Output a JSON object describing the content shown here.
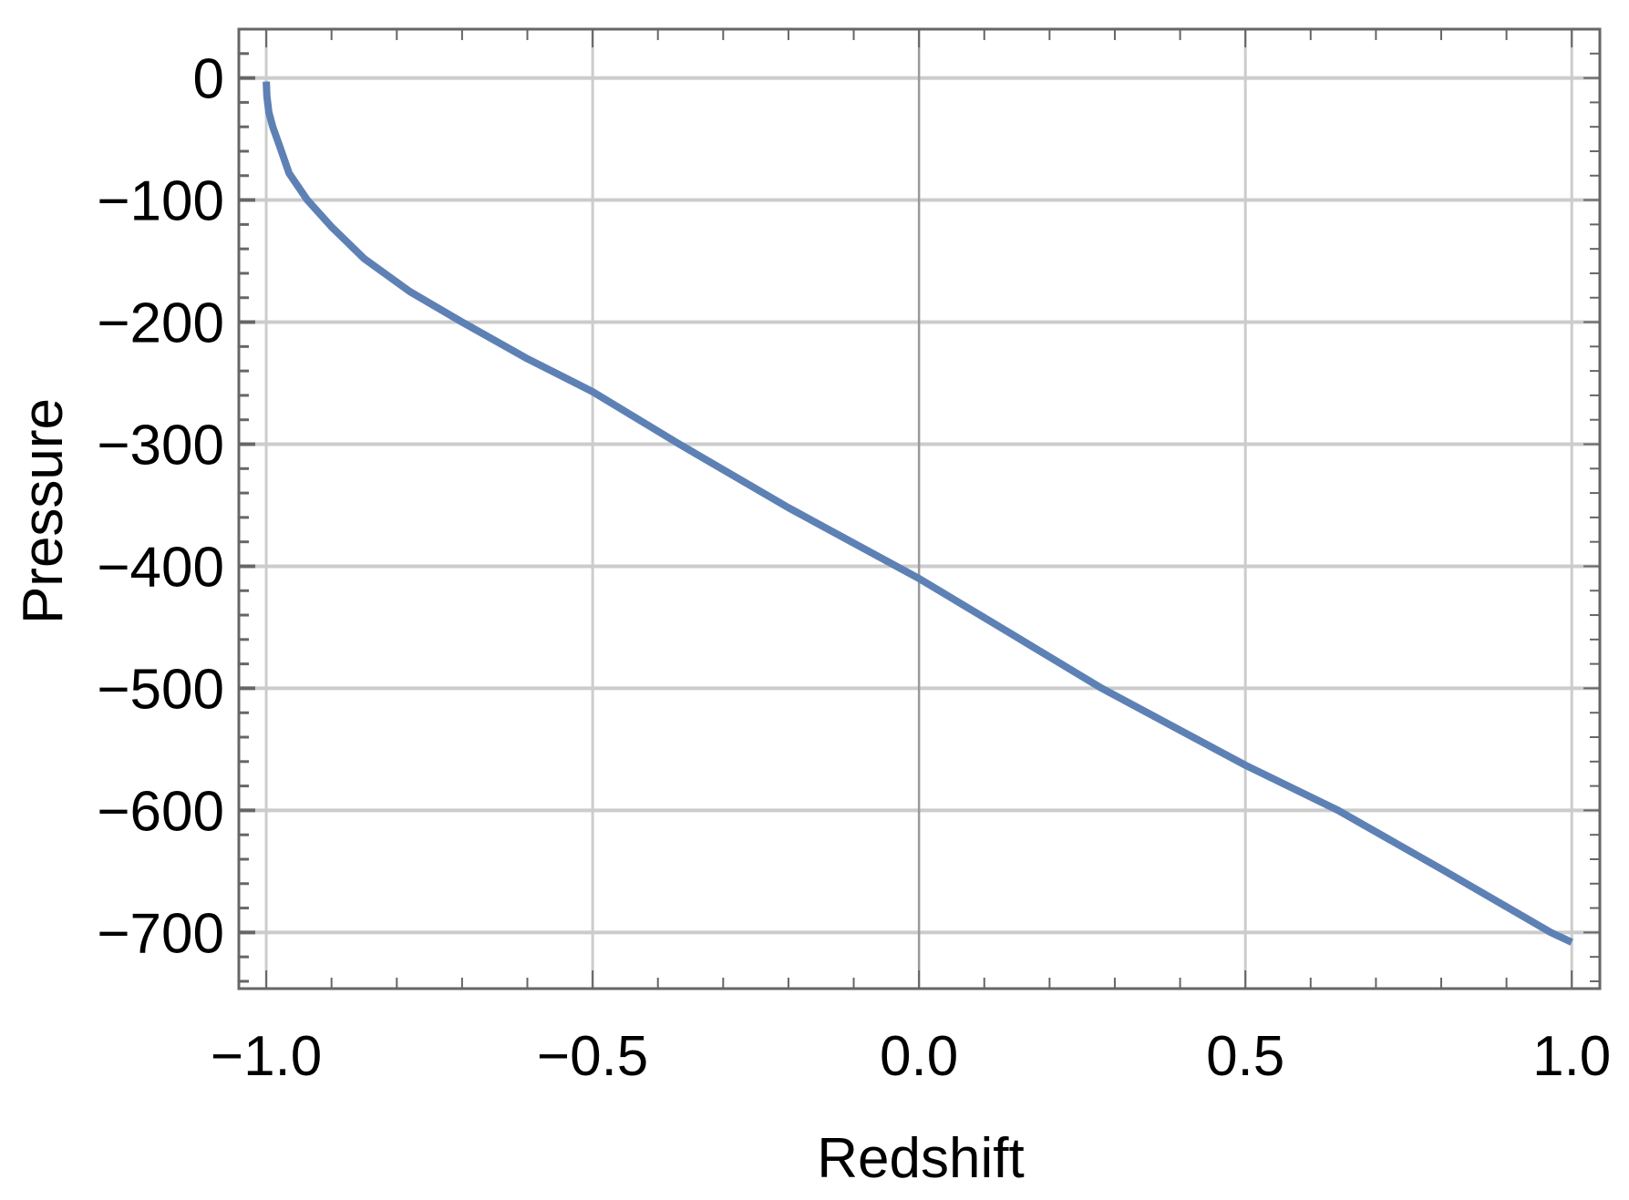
{
  "chart_data": {
    "type": "line",
    "title": "",
    "xlabel": "Redshift",
    "ylabel": "Pressure",
    "xlim": [
      -1.042,
      1.043
    ],
    "ylim": [
      -746,
      40
    ],
    "grid": true,
    "x_ticks": [
      -1.0,
      -0.5,
      0.0,
      0.5,
      1.0
    ],
    "x_tick_labels": [
      "−1.0",
      "−0.5",
      "0.0",
      "0.5",
      "1.0"
    ],
    "y_ticks": [
      0,
      -100,
      -200,
      -300,
      -400,
      -500,
      -600,
      -700
    ],
    "y_tick_labels": [
      "0",
      "−100",
      "−200",
      "−300",
      "−400",
      "−500",
      "−600",
      "−700"
    ],
    "line_color": "#5e81b5",
    "series": [
      {
        "x": [
          -1.0,
          -0.999,
          -0.996,
          -0.99,
          -0.98,
          -0.965,
          -0.937,
          -0.9,
          -0.85,
          -0.78,
          -0.7,
          -0.6,
          -0.5,
          -0.367,
          -0.2,
          0.0,
          0.14,
          0.28,
          0.5,
          0.642,
          0.8,
          0.968,
          1.0
        ],
        "y": [
          -3,
          -15,
          -28,
          -40,
          -55,
          -78,
          -100,
          -122,
          -148,
          -175,
          -200,
          -230,
          -257,
          -300,
          -352,
          -410,
          -455,
          -500,
          -563,
          -600,
          -648,
          -700,
          -708
        ]
      }
    ]
  }
}
